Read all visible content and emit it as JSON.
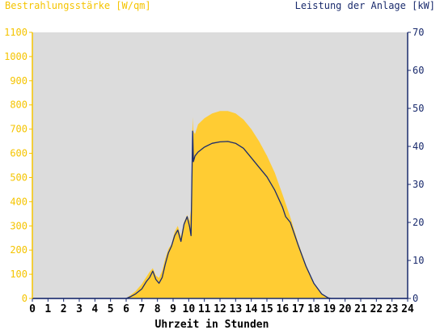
{
  "colors": {
    "plot_bg": "#dcdcdc",
    "irradiance": "#ffcc33",
    "irradiance_text": "#f5c400",
    "power": "#1a2b6d",
    "axis": "#1a2b6d"
  },
  "chart_data": {
    "type": "area",
    "ylabel_left": "Bestrahlungsstärke [W/qm]",
    "ylabel_right": "Leistung der Anlage [kW]",
    "xlabel": "Uhrzeit in Stunden",
    "xlim": [
      0,
      24
    ],
    "ylim_left": [
      0,
      1100
    ],
    "ylim_right": [
      0,
      70
    ],
    "x_ticks": [
      "0",
      "1",
      "2",
      "3",
      "4",
      "5",
      "6",
      "7",
      "8",
      "9",
      "10",
      "11",
      "12",
      "13",
      "14",
      "15",
      "16",
      "17",
      "18",
      "19",
      "20",
      "21",
      "22",
      "23",
      "24"
    ],
    "y_left_ticks": [
      "0",
      "100",
      "200",
      "300",
      "400",
      "500",
      "600",
      "700",
      "800",
      "900",
      "1000",
      "1100"
    ],
    "y_right_ticks": [
      "0",
      "10",
      "20",
      "30",
      "40",
      "50",
      "60",
      "70"
    ],
    "grid": false,
    "series": [
      {
        "name": "Bestrahlungsstärke [W/qm]",
        "axis": "left",
        "type": "area",
        "x": [
          0,
          6.0,
          6.3,
          6.6,
          7.0,
          7.3,
          7.5,
          7.7,
          7.9,
          8.1,
          8.3,
          8.5,
          8.7,
          8.9,
          9.1,
          9.3,
          9.5,
          9.7,
          9.9,
          10.05,
          10.15,
          10.25,
          10.3,
          10.4,
          10.6,
          11.0,
          11.5,
          12.0,
          12.5,
          13.0,
          13.5,
          14.0,
          14.5,
          15.0,
          15.5,
          16.0,
          16.5,
          17.0,
          17.5,
          18.0,
          18.5,
          18.9,
          19.1,
          24
        ],
        "y": [
          0,
          0,
          15,
          30,
          60,
          90,
          110,
          125,
          95,
          85,
          115,
          165,
          205,
          225,
          275,
          300,
          255,
          315,
          345,
          320,
          370,
          750,
          690,
          680,
          720,
          745,
          765,
          775,
          775,
          765,
          740,
          700,
          650,
          590,
          520,
          430,
          335,
          230,
          140,
          65,
          20,
          5,
          0,
          0
        ]
      },
      {
        "name": "Leistung der Anlage [kW]",
        "axis": "right",
        "type": "line",
        "x": [
          0,
          6.0,
          6.3,
          6.6,
          7.0,
          7.3,
          7.5,
          7.7,
          7.9,
          8.1,
          8.3,
          8.5,
          8.7,
          8.9,
          9.1,
          9.3,
          9.5,
          9.7,
          9.9,
          10.05,
          10.15,
          10.25,
          10.3,
          10.4,
          10.6,
          11.0,
          11.5,
          12.0,
          12.5,
          13.0,
          13.5,
          14.0,
          14.5,
          15.0,
          15.5,
          16.0,
          16.2,
          16.5,
          17.0,
          17.5,
          18.0,
          18.5,
          18.9,
          19.1,
          24
        ],
        "y": [
          0,
          0,
          0.5,
          1.2,
          2.5,
          4.5,
          5.5,
          7.2,
          5.0,
          4.0,
          5.5,
          9.0,
          12.0,
          13.8,
          16.5,
          18.0,
          15.0,
          19.5,
          21.5,
          19.0,
          16.5,
          44.0,
          36.0,
          37.5,
          38.5,
          39.8,
          40.8,
          41.2,
          41.3,
          40.8,
          39.5,
          37.0,
          34.5,
          32.0,
          28.5,
          24.0,
          21.5,
          20.0,
          14.0,
          8.5,
          4.0,
          1.2,
          0.2,
          0,
          0
        ]
      }
    ]
  }
}
